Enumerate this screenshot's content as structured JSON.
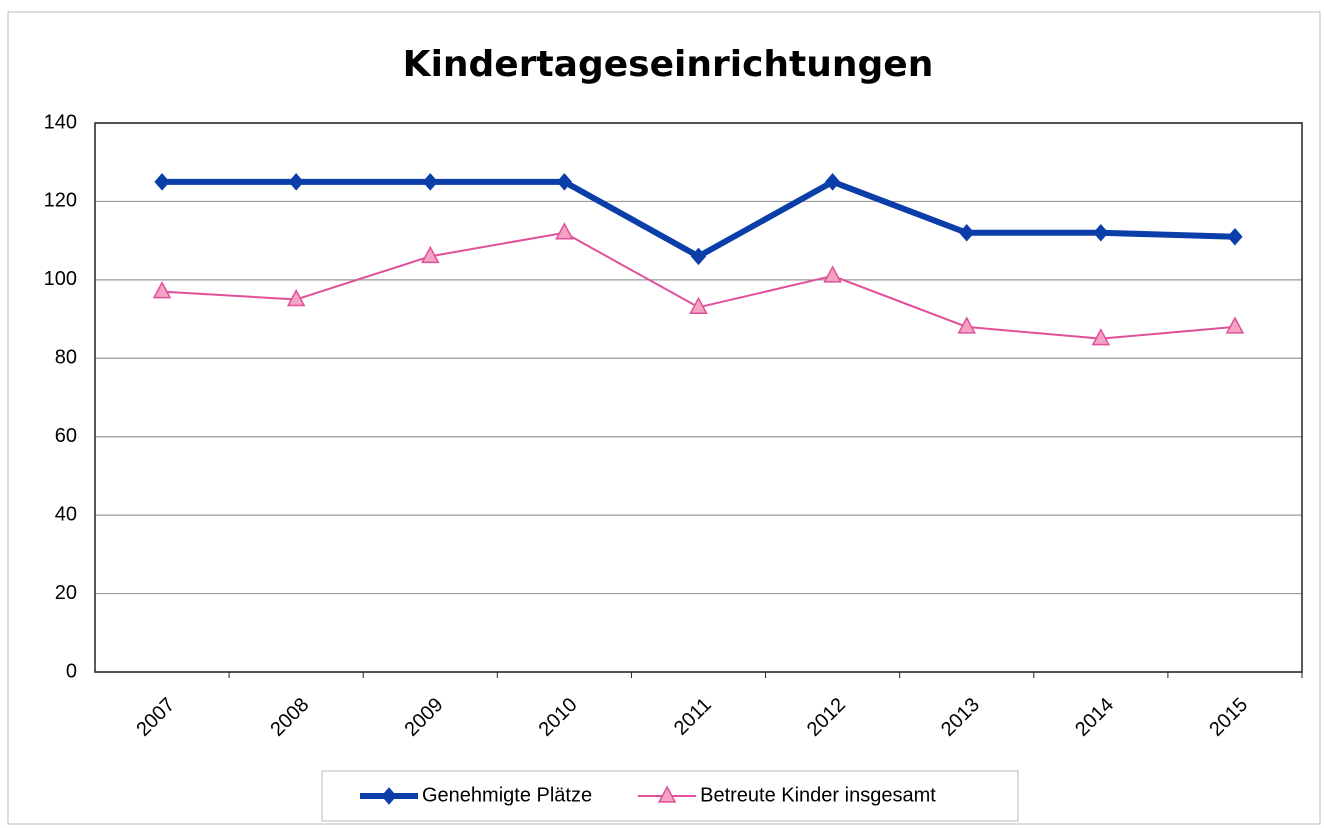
{
  "chart_data": {
    "type": "line",
    "title": "Kindertageseinrichtungen",
    "categories": [
      "2007",
      "2008",
      "2009",
      "2010",
      "2011",
      "2012",
      "2013",
      "2014",
      "2015"
    ],
    "series": [
      {
        "name": "Genehmigte Plätze",
        "color": "#0b3ea8",
        "marker": "diamond",
        "width": 6,
        "values": [
          125,
          125,
          125,
          125,
          106,
          125,
          112,
          112,
          111
        ]
      },
      {
        "name": "Betreute Kinder insgesamt",
        "color": "#e0509a",
        "marker": "triangle",
        "width": 2,
        "values": [
          97,
          95,
          106,
          112,
          93,
          101,
          88,
          85,
          88
        ]
      }
    ],
    "ylim": [
      0,
      140
    ],
    "yticks": [
      0,
      20,
      40,
      60,
      80,
      100,
      120,
      140
    ],
    "grid": true,
    "legend": "bottom"
  }
}
